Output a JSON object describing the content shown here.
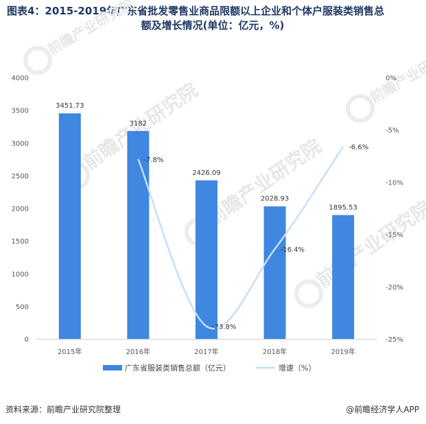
{
  "title_line1": "图表4：2015-2019年广东省批发零售业商品限额以上企业和个体户服装类销售总",
  "title_line2": "额及增长情况(单位：亿元，%)",
  "footer": {
    "source": "资料来源：前瞻产业研究院整理",
    "brand": "@前瞻经济学人APP"
  },
  "watermark": "前瞻产业研究院",
  "colors": {
    "bar": "#3f87e0",
    "line": "#c6dff5",
    "title": "#1f3864"
  },
  "chart_data": {
    "type": "bar",
    "categories": [
      "2015年",
      "2016年",
      "2017年",
      "2018年",
      "2019年"
    ],
    "series": [
      {
        "name": "广东省服装类销售总额（亿元）",
        "type": "bar",
        "axis": "left",
        "values": [
          3451.73,
          3182,
          2426.09,
          2028.93,
          1895.53
        ],
        "labels": [
          "3451.73",
          "3182",
          "2426.09",
          "2028.93",
          "1895.53"
        ]
      },
      {
        "name": "增速（%）",
        "type": "line",
        "axis": "right",
        "values": [
          null,
          -7.8,
          -23.8,
          -16.4,
          -6.6
        ],
        "labels": [
          "",
          "-7.8%",
          "-23.8%",
          "-16.4%",
          "-6.6%"
        ]
      }
    ],
    "y_left": {
      "lim": [
        0,
        4000
      ],
      "ticks": [
        0,
        500,
        1000,
        1500,
        2000,
        2500,
        3000,
        3500,
        4000
      ],
      "tick_labels": [
        "0",
        "500",
        "1000",
        "1500",
        "2000",
        "2500",
        "3000",
        "3500",
        "4000"
      ]
    },
    "y_right": {
      "lim": [
        -25,
        0
      ],
      "ticks": [
        0,
        -5,
        -10,
        -15,
        -20,
        -25
      ],
      "tick_labels": [
        "0%",
        "-5%",
        "-10%",
        "-15%",
        "-20%",
        "-25%"
      ]
    },
    "grid": false,
    "legend_position": "bottom"
  }
}
